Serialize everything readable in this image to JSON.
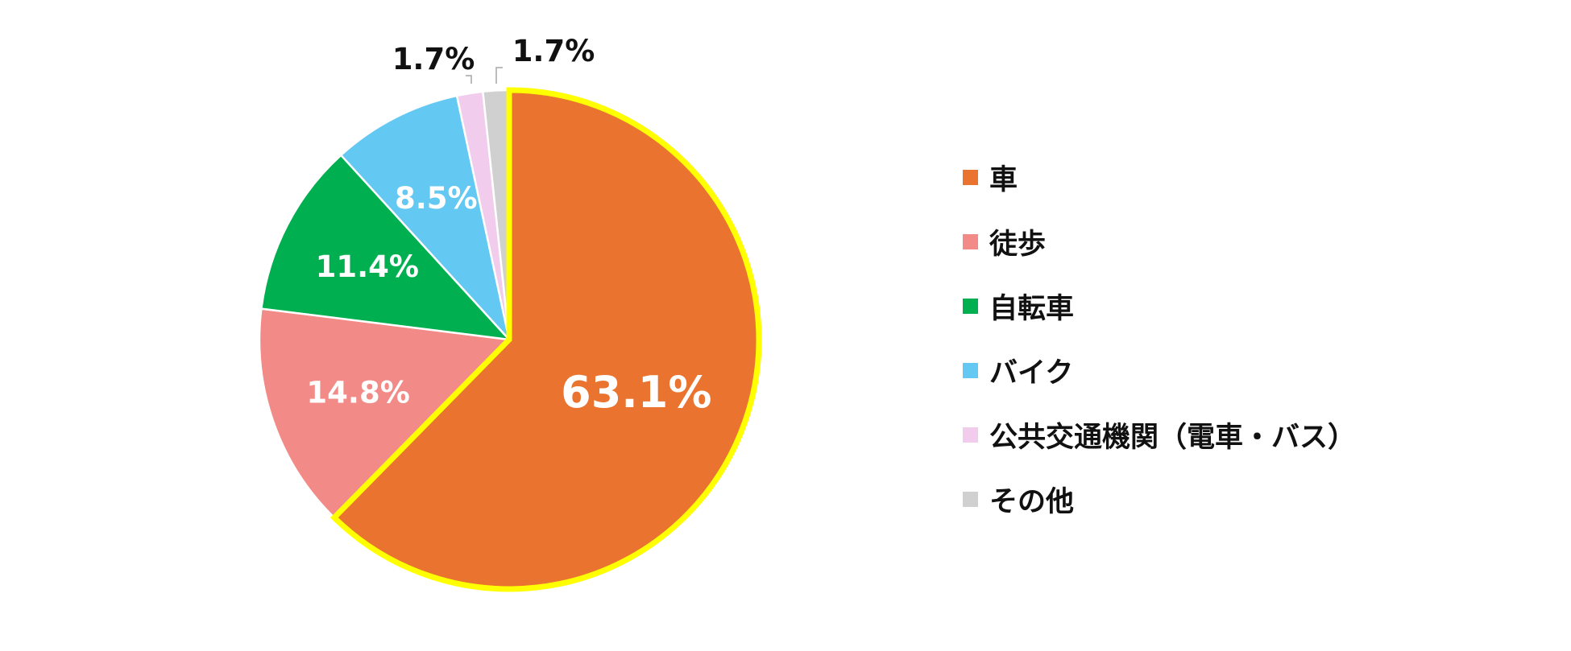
{
  "chart_data": {
    "type": "pie",
    "title": "",
    "start_angle_deg": 0,
    "direction": "clockwise",
    "slices": [
      {
        "name": "車",
        "value": 63.1,
        "label": "63.1%",
        "color": "#E9732F",
        "highlight": "#FFFF00"
      },
      {
        "name": "徒歩",
        "value": 14.8,
        "label": "14.8%",
        "color": "#F28B87"
      },
      {
        "name": "自転車",
        "value": 11.4,
        "label": "11.4%",
        "color": "#00B050"
      },
      {
        "name": "バイク",
        "value": 8.5,
        "label": "8.5%",
        "color": "#63C8F2"
      },
      {
        "name": "公共交通機関（電車・バス）",
        "value": 1.7,
        "label": "1.7%",
        "color": "#F2CCEC"
      },
      {
        "name": "その他",
        "value": 1.7,
        "label": "1.7%",
        "color": "#D0D0D0"
      }
    ],
    "legend_position": "right"
  }
}
